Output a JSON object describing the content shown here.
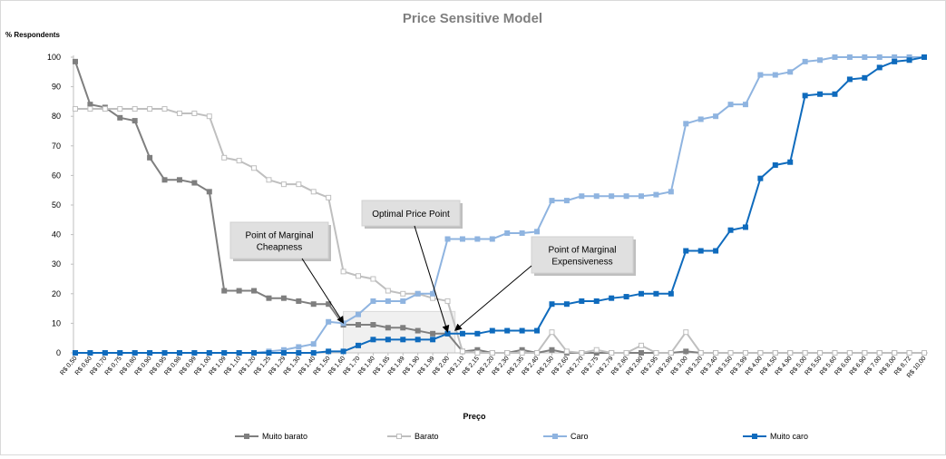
{
  "chart_data": {
    "type": "line",
    "title": "Price Sensitive Model",
    "ylabel": "% Respondents",
    "xlabel": "Preço",
    "ylim": [
      0,
      100
    ],
    "yticks": [
      0,
      10,
      20,
      30,
      40,
      50,
      60,
      70,
      80,
      90,
      100
    ],
    "grid": false,
    "legend_position": "bottom",
    "categories": [
      "R$ 0,50",
      "R$ 0,60",
      "R$ 0,70",
      "R$ 0,75",
      "R$ 0,80",
      "R$ 0,90",
      "R$ 0,95",
      "R$ 0,98",
      "R$ 0,99",
      "R$ 1,00",
      "R$ 1,09",
      "R$ 1,10",
      "R$ 1,20",
      "R$ 1,25",
      "R$ 1,29",
      "R$ 1,30",
      "R$ 1,40",
      "R$ 1,50",
      "R$ 1,60",
      "R$ 1,70",
      "R$ 1,80",
      "R$ 1,85",
      "R$ 1,89",
      "R$ 1,90",
      "R$ 1,99",
      "R$ 2,00",
      "R$ 2,10",
      "R$ 2,15",
      "R$ 2,20",
      "R$ 2,30",
      "R$ 2,35",
      "R$ 2,40",
      "R$ 2,50",
      "R$ 2,60",
      "R$ 2,70",
      "R$ 2,75",
      "R$ 2,79",
      "R$ 2,80",
      "R$ 2,90",
      "R$ 2,95",
      "R$ 2,99",
      "R$ 3,00",
      "R$ 3,20",
      "R$ 3,40",
      "R$ 3,50",
      "R$ 3,99",
      "R$ 4,00",
      "R$ 4,50",
      "R$ 4,90",
      "R$ 5,00",
      "R$ 5,50",
      "R$ 5,60",
      "R$ 6,00",
      "R$ 6,90",
      "R$ 7,00",
      "R$ 8,00",
      "R$ 8,72",
      "R$ 10,00"
    ],
    "series": [
      {
        "name": "Muito barato",
        "color": "#7f7f7f",
        "values": [
          98.5,
          84,
          83,
          79.5,
          78.5,
          66,
          58.5,
          58.5,
          57.5,
          54.5,
          21,
          21,
          21,
          18.5,
          18.5,
          17.5,
          16.5,
          16.5,
          9.5,
          9.5,
          9.5,
          8.5,
          8.5,
          7.5,
          6.5,
          6.5,
          0.5,
          1,
          0,
          0,
          1,
          0,
          1,
          0,
          0,
          0,
          0,
          0,
          0,
          0,
          0,
          0.5,
          0,
          0,
          0,
          0,
          0,
          0,
          0,
          0,
          0,
          0,
          0,
          0,
          0,
          0,
          0,
          0
        ]
      },
      {
        "name": "Barato",
        "color": "#bfbfbf",
        "values": [
          82.5,
          82.5,
          82.5,
          82.5,
          82.5,
          82.5,
          82.5,
          81,
          81,
          80,
          66,
          65,
          62.5,
          58.5,
          57,
          57,
          54.5,
          52.5,
          27.5,
          26,
          25,
          21,
          20,
          20,
          18.5,
          17.5,
          0.5,
          0,
          0,
          0,
          0,
          0,
          7,
          0.5,
          0,
          1,
          0,
          0,
          2.5,
          0,
          0,
          7,
          0,
          0,
          0,
          0,
          0,
          0,
          0,
          0,
          0,
          0,
          0,
          0,
          0,
          0,
          0,
          0
        ]
      },
      {
        "name": "Caro",
        "color": "#8fb4e0",
        "values": [
          0,
          0,
          0,
          0,
          0,
          0,
          0,
          0,
          0,
          0,
          0,
          0,
          0,
          0.5,
          1,
          2,
          3,
          10.5,
          10,
          13,
          17.5,
          17.5,
          17.5,
          20,
          20,
          38.5,
          38.5,
          38.5,
          38.5,
          40.5,
          40.5,
          41,
          51.5,
          51.5,
          53,
          53,
          53,
          53,
          53,
          53.5,
          54.5,
          77.5,
          79,
          80,
          84,
          84,
          94,
          94,
          95,
          98.5,
          99,
          100,
          100,
          100,
          100,
          100,
          100,
          100
        ]
      },
      {
        "name": "Muito caro",
        "color": "#0f6bbd",
        "values": [
          0,
          0,
          0,
          0,
          0,
          0,
          0,
          0,
          0,
          0,
          0,
          0,
          0,
          0,
          0,
          0,
          0,
          0.5,
          0.5,
          2.5,
          4.5,
          4.5,
          4.5,
          4.5,
          4.5,
          6.5,
          6.5,
          6.5,
          7.5,
          7.5,
          7.5,
          7.5,
          16.5,
          16.5,
          17.5,
          17.5,
          18.5,
          19,
          20,
          20,
          20,
          34.5,
          34.5,
          34.5,
          41.5,
          42.5,
          59,
          63.5,
          64.5,
          87,
          87.5,
          87.5,
          92.5,
          93,
          96.5,
          98.5,
          99,
          100
        ]
      }
    ],
    "annotations": [
      {
        "id": "marginal-cheapness",
        "lines": [
          "Point of Marginal",
          "Cheapness"
        ],
        "target": {
          "x_index": 18,
          "y": 9.5
        }
      },
      {
        "id": "optimal-price",
        "lines": [
          "Optimal Price Point"
        ],
        "target": {
          "x_index": 25,
          "y": 6.5
        }
      },
      {
        "id": "marginal-expensiveness",
        "lines": [
          "Point of Marginal",
          "Expensiveness"
        ],
        "target": {
          "x_index": 25.5,
          "y": 7
        }
      }
    ],
    "shaded_range": {
      "x_index_from": 18,
      "x_index_to": 25.5,
      "y_from": 0,
      "y_to": 14
    }
  }
}
